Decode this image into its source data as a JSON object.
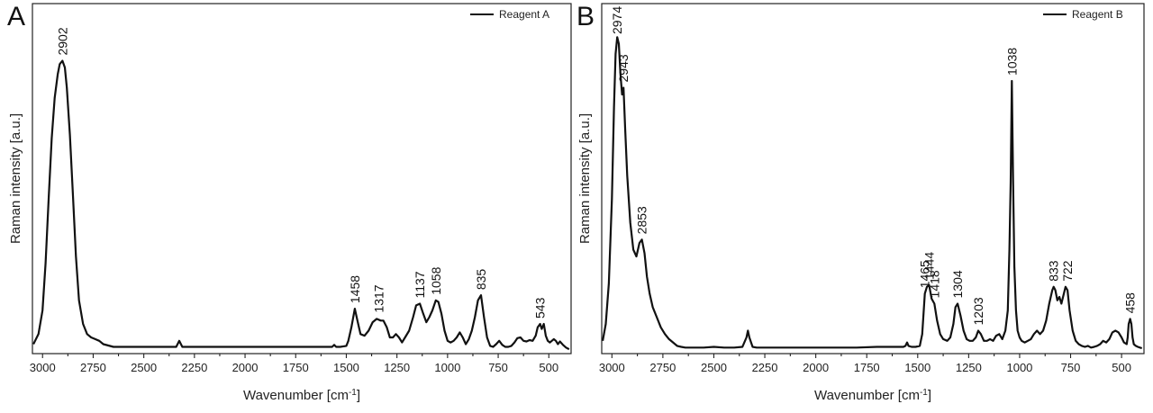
{
  "chart_data": [
    {
      "type": "line",
      "panel_label": "A",
      "xlabel": "Wavenumber [cm",
      "xlabel_sup": "-1",
      "xlabel_end": "]",
      "ylabel": "Raman intensity [a.u.]",
      "x_reversed": true,
      "xlim": [
        3050,
        390
      ],
      "ylim": [
        0,
        1
      ],
      "x_ticks": [
        3000,
        2750,
        2500,
        2250,
        2000,
        1750,
        1500,
        1250,
        1000,
        750,
        500
      ],
      "x_tick_labels": [
        "3000",
        "2750",
        "2500",
        "2250",
        "2000",
        "1750",
        "1500",
        "1250",
        "1000",
        "750",
        "500"
      ],
      "y_ticks_labeled": false,
      "legend": {
        "position": "top-right",
        "entries": [
          "Reagent A"
        ]
      },
      "series": [
        {
          "name": "Reagent A",
          "x": [
            3045,
            3020,
            3000,
            2985,
            2970,
            2955,
            2940,
            2925,
            2915,
            2902,
            2890,
            2880,
            2865,
            2850,
            2835,
            2820,
            2800,
            2780,
            2760,
            2740,
            2720,
            2700,
            2650,
            2600,
            2550,
            2500,
            2450,
            2400,
            2360,
            2340,
            2325,
            2310,
            2280,
            2200,
            2100,
            2000,
            1900,
            1800,
            1700,
            1600,
            1570,
            1560,
            1550,
            1530,
            1500,
            1490,
            1475,
            1458,
            1445,
            1430,
            1410,
            1390,
            1370,
            1350,
            1330,
            1317,
            1300,
            1285,
            1270,
            1255,
            1240,
            1225,
            1210,
            1190,
            1170,
            1155,
            1137,
            1120,
            1105,
            1090,
            1075,
            1058,
            1045,
            1030,
            1015,
            1000,
            985,
            970,
            955,
            940,
            925,
            910,
            895,
            880,
            865,
            850,
            835,
            820,
            805,
            790,
            775,
            760,
            745,
            730,
            715,
            700,
            685,
            670,
            655,
            640,
            625,
            610,
            595,
            580,
            565,
            555,
            543,
            535,
            525,
            515,
            505,
            495,
            485,
            475,
            465,
            455,
            445,
            430,
            415,
            400
          ],
          "values": [
            0.02,
            0.05,
            0.12,
            0.26,
            0.45,
            0.63,
            0.75,
            0.82,
            0.85,
            0.86,
            0.84,
            0.78,
            0.64,
            0.46,
            0.28,
            0.15,
            0.08,
            0.05,
            0.04,
            0.035,
            0.03,
            0.02,
            0.012,
            0.012,
            0.012,
            0.012,
            0.012,
            0.012,
            0.012,
            0.012,
            0.03,
            0.012,
            0.012,
            0.012,
            0.012,
            0.012,
            0.012,
            0.012,
            0.012,
            0.012,
            0.012,
            0.018,
            0.012,
            0.012,
            0.015,
            0.03,
            0.07,
            0.125,
            0.09,
            0.05,
            0.045,
            0.06,
            0.085,
            0.095,
            0.09,
            0.09,
            0.07,
            0.04,
            0.04,
            0.05,
            0.04,
            0.025,
            0.04,
            0.06,
            0.1,
            0.135,
            0.14,
            0.11,
            0.085,
            0.1,
            0.12,
            0.15,
            0.145,
            0.11,
            0.06,
            0.03,
            0.025,
            0.03,
            0.04,
            0.055,
            0.04,
            0.02,
            0.035,
            0.06,
            0.1,
            0.15,
            0.165,
            0.1,
            0.04,
            0.015,
            0.012,
            0.02,
            0.03,
            0.018,
            0.012,
            0.012,
            0.015,
            0.025,
            0.038,
            0.04,
            0.03,
            0.028,
            0.032,
            0.03,
            0.045,
            0.07,
            0.08,
            0.065,
            0.08,
            0.045,
            0.03,
            0.025,
            0.03,
            0.035,
            0.03,
            0.02,
            0.028,
            0.018,
            0.01,
            0.005
          ]
        }
      ],
      "annotations": [
        {
          "text": "2902",
          "x": 2902,
          "y": 0.86
        },
        {
          "text": "1458",
          "x": 1458,
          "y": 0.125
        },
        {
          "text": "1317",
          "x": 1340,
          "y": 0.097
        },
        {
          "text": "1137",
          "x": 1137,
          "y": 0.14
        },
        {
          "text": "1058",
          "x": 1058,
          "y": 0.15
        },
        {
          "text": "835",
          "x": 835,
          "y": 0.165
        },
        {
          "text": "543",
          "x": 543,
          "y": 0.08
        }
      ]
    },
    {
      "type": "line",
      "panel_label": "B",
      "xlabel": "Wavenumber [cm",
      "xlabel_sup": "-1",
      "xlabel_end": "]",
      "ylabel": "Raman intensity [a.u.]",
      "x_reversed": true,
      "xlim": [
        3050,
        390
      ],
      "ylim": [
        0,
        1
      ],
      "x_ticks": [
        3000,
        2750,
        2500,
        2250,
        2000,
        1750,
        1500,
        1250,
        1000,
        750,
        500
      ],
      "x_tick_labels": [
        "3000",
        "2750",
        "2500",
        "2250",
        "2000",
        "1750",
        "1500",
        "1250",
        "1000",
        "750",
        "500"
      ],
      "y_ticks_labeled": false,
      "legend": {
        "position": "top-right",
        "entries": [
          "Reagent B"
        ]
      },
      "series": [
        {
          "name": "Reagent B",
          "x": [
            3045,
            3030,
            3015,
            3000,
            2990,
            2982,
            2974,
            2966,
            2958,
            2950,
            2943,
            2935,
            2925,
            2910,
            2895,
            2880,
            2865,
            2853,
            2840,
            2828,
            2815,
            2800,
            2780,
            2760,
            2740,
            2720,
            2700,
            2680,
            2660,
            2640,
            2600,
            2550,
            2500,
            2450,
            2400,
            2360,
            2340,
            2333,
            2326,
            2310,
            2290,
            2200,
            2100,
            2000,
            1900,
            1800,
            1700,
            1600,
            1570,
            1560,
            1552,
            1545,
            1530,
            1510,
            1490,
            1478,
            1465,
            1455,
            1444,
            1432,
            1418,
            1405,
            1390,
            1375,
            1355,
            1340,
            1325,
            1315,
            1304,
            1290,
            1275,
            1260,
            1245,
            1230,
            1215,
            1203,
            1190,
            1175,
            1160,
            1145,
            1130,
            1115,
            1100,
            1085,
            1070,
            1058,
            1050,
            1044,
            1038,
            1032,
            1026,
            1018,
            1010,
            1000,
            990,
            975,
            960,
            945,
            930,
            915,
            900,
            885,
            870,
            855,
            840,
            833,
            825,
            815,
            805,
            795,
            785,
            775,
            765,
            755,
            740,
            725,
            710,
            695,
            680,
            665,
            650,
            635,
            620,
            605,
            590,
            575,
            560,
            545,
            530,
            515,
            500,
            488,
            475,
            470,
            465,
            458,
            452,
            446,
            440,
            430,
            420,
            410,
            400
          ],
          "values": [
            0.03,
            0.08,
            0.2,
            0.45,
            0.72,
            0.88,
            0.93,
            0.91,
            0.82,
            0.76,
            0.78,
            0.66,
            0.52,
            0.38,
            0.3,
            0.28,
            0.32,
            0.33,
            0.29,
            0.22,
            0.17,
            0.13,
            0.1,
            0.07,
            0.05,
            0.035,
            0.025,
            0.015,
            0.012,
            0.01,
            0.01,
            0.01,
            0.012,
            0.01,
            0.01,
            0.012,
            0.04,
            0.06,
            0.04,
            0.012,
            0.01,
            0.01,
            0.01,
            0.01,
            0.01,
            0.01,
            0.012,
            0.012,
            0.012,
            0.015,
            0.025,
            0.015,
            0.012,
            0.012,
            0.015,
            0.05,
            0.17,
            0.19,
            0.195,
            0.155,
            0.14,
            0.09,
            0.05,
            0.035,
            0.03,
            0.04,
            0.08,
            0.13,
            0.14,
            0.105,
            0.06,
            0.035,
            0.03,
            0.03,
            0.04,
            0.06,
            0.05,
            0.03,
            0.03,
            0.035,
            0.03,
            0.045,
            0.05,
            0.035,
            0.06,
            0.12,
            0.3,
            0.5,
            0.8,
            0.5,
            0.25,
            0.12,
            0.06,
            0.04,
            0.03,
            0.025,
            0.03,
            0.035,
            0.05,
            0.06,
            0.05,
            0.06,
            0.09,
            0.14,
            0.18,
            0.19,
            0.18,
            0.15,
            0.16,
            0.14,
            0.165,
            0.19,
            0.18,
            0.12,
            0.06,
            0.03,
            0.02,
            0.015,
            0.012,
            0.015,
            0.01,
            0.012,
            0.015,
            0.02,
            0.03,
            0.025,
            0.035,
            0.055,
            0.06,
            0.055,
            0.04,
            0.025,
            0.02,
            0.04,
            0.08,
            0.095,
            0.08,
            0.04,
            0.02,
            0.015,
            0.012,
            0.01,
            0.008
          ]
        }
      ],
      "annotations": [
        {
          "text": "2974",
          "x": 2974,
          "y": 0.93
        },
        {
          "text": "2943",
          "x": 2943,
          "y": 0.78
        },
        {
          "text": "2853",
          "x": 2853,
          "y": 0.33
        },
        {
          "text": "1465",
          "x": 1465,
          "y": 0.17
        },
        {
          "text": "1444",
          "x": 1444,
          "y": 0.195
        },
        {
          "text": "1418",
          "x": 1418,
          "y": 0.14
        },
        {
          "text": "1304",
          "x": 1304,
          "y": 0.14
        },
        {
          "text": "1203",
          "x": 1203,
          "y": 0.06
        },
        {
          "text": "1038",
          "x": 1038,
          "y": 0.8
        },
        {
          "text": "833",
          "x": 833,
          "y": 0.19
        },
        {
          "text": "722",
          "x": 765,
          "y": 0.19
        },
        {
          "text": "458",
          "x": 458,
          "y": 0.095
        }
      ]
    }
  ]
}
